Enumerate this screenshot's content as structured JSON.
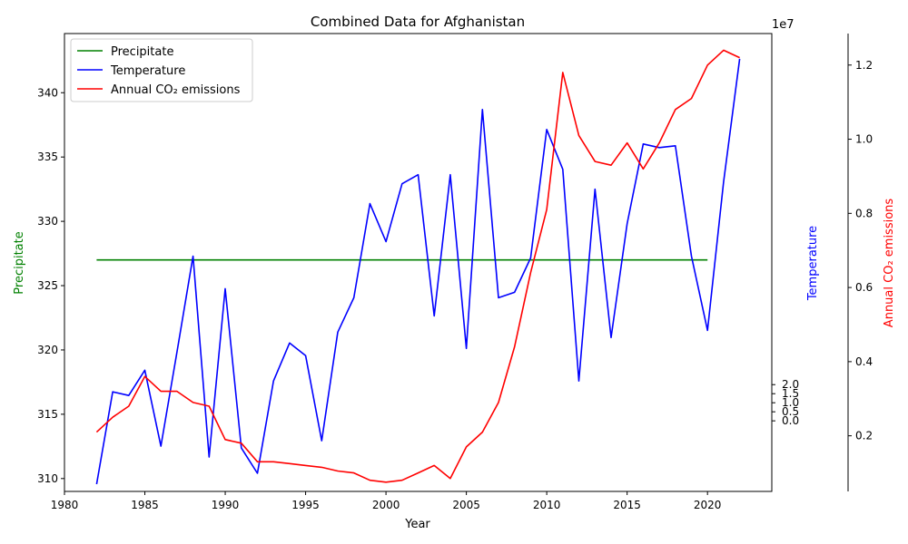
{
  "chart_data": {
    "type": "line",
    "title": "Combined Data for Afghanistan",
    "xlabel": "Year",
    "xlim": [
      1980,
      2024
    ],
    "xticks": [
      1980,
      1985,
      1990,
      1995,
      2000,
      2005,
      2010,
      2015,
      2020
    ],
    "axes": {
      "left": {
        "label": "Precipitate",
        "color": "#008000",
        "ylim": [
          309.0,
          344.6
        ],
        "ticks": [
          310,
          315,
          320,
          325,
          330,
          335,
          340
        ]
      },
      "right1": {
        "label": "Temperature",
        "color": "#0000ff",
        "offset_text": "1e7",
        "ylim": [
          -3.9,
          21.4
        ],
        "ticks": [
          0.0,
          0.5,
          1.0,
          1.5,
          2.0
        ],
        "tick_labels": [
          "0.0",
          "0.5",
          "1.0",
          "1.5",
          "2.0"
        ],
        "unit_multiplier": 10000000
      },
      "right2": {
        "label": "Annual CO₂ emissions",
        "color": "#ff0000",
        "ylim": [
          0.05,
          1.285
        ],
        "ticks": [
          0.2,
          0.4,
          0.6,
          0.8,
          1.0,
          1.2
        ],
        "tick_labels": [
          "0.2",
          "0.4",
          "0.6",
          "0.8",
          "1.0",
          "1.2"
        ]
      }
    },
    "legend": {
      "position": "upper-left",
      "entries": [
        "Precipitate",
        "Temperature",
        "Annual CO₂ emissions"
      ]
    },
    "series": [
      {
        "name": "Precipitate",
        "axis": "left",
        "color": "#008000",
        "x": [
          1982,
          2020
        ],
        "values": [
          327,
          327
        ]
      },
      {
        "name": "Temperature",
        "axis": "right1",
        "color": "#0000ff",
        "x": [
          1982,
          1983,
          1984,
          1985,
          1986,
          1987,
          1988,
          1989,
          1990,
          1991,
          1992,
          1993,
          1994,
          1995,
          1996,
          1997,
          1998,
          1999,
          2000,
          2001,
          2002,
          2003,
          2004,
          2005,
          2006,
          2007,
          2008,
          2009,
          2010,
          2011,
          2012,
          2013,
          2014,
          2015,
          2016,
          2017,
          2018,
          2019,
          2020,
          2021,
          2022
        ],
        "values": [
          -3.5,
          1.6,
          1.4,
          2.8,
          -1.4,
          3.8,
          9.1,
          -2.0,
          7.3,
          -1.5,
          -2.9,
          2.2,
          4.3,
          3.6,
          -1.1,
          4.9,
          6.8,
          12.0,
          9.9,
          13.1,
          13.6,
          5.8,
          13.6,
          4.0,
          17.2,
          6.8,
          7.1,
          9.0,
          16.1,
          13.9,
          2.2,
          12.8,
          4.6,
          10.9,
          15.3,
          15.1,
          15.2,
          9.1,
          5.0,
          13.2,
          20.0
        ]
      },
      {
        "name": "Annual CO₂ emissions",
        "axis": "right2",
        "color": "#ff0000",
        "x": [
          1982,
          1983,
          1984,
          1985,
          1986,
          1987,
          1988,
          1989,
          1990,
          1991,
          1992,
          1993,
          1994,
          1995,
          1996,
          1997,
          1998,
          1999,
          2000,
          2001,
          2002,
          2003,
          2004,
          2005,
          2006,
          2007,
          2008,
          2009,
          2010,
          2011,
          2012,
          2013,
          2014,
          2015,
          2016,
          2017,
          2018,
          2019,
          2020,
          2021,
          2022
        ],
        "values": [
          0.21,
          0.25,
          0.28,
          0.36,
          0.32,
          0.32,
          0.29,
          0.28,
          0.19,
          0.18,
          0.13,
          0.13,
          0.125,
          0.12,
          0.115,
          0.105,
          0.1,
          0.08,
          0.075,
          0.08,
          0.1,
          0.12,
          0.085,
          0.17,
          0.21,
          0.29,
          0.44,
          0.64,
          0.81,
          1.18,
          1.01,
          0.94,
          0.93,
          0.99,
          0.92,
          0.99,
          1.08,
          1.11,
          1.2,
          1.24,
          1.22
        ]
      }
    ]
  }
}
